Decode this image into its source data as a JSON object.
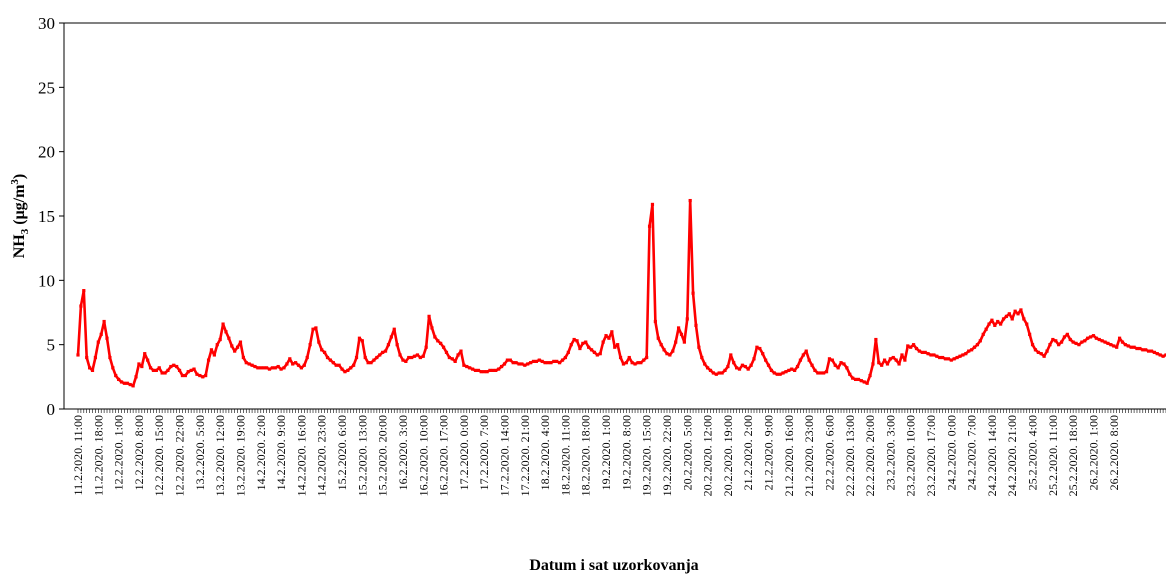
{
  "chart_data": {
    "type": "line",
    "title": "",
    "xlabel": "Datum i sat uzorkovanja",
    "ylabel": {
      "base": "NH",
      "sub": "3",
      "units_pre": " (μg/m",
      "sup": "3",
      "units_post": ")"
    },
    "ylim": [
      0,
      30
    ],
    "yticks": [
      0,
      5,
      10,
      15,
      20,
      25,
      30
    ],
    "grid": false,
    "legend": "none",
    "line_color": "#ff0000",
    "x_tick_labels": [
      "11.2.2020. 11:00",
      "11.2.2020. 18:00",
      "12.2.2020. 1:00",
      "12.2.2020. 8:00",
      "12.2.2020. 15:00",
      "12.2.2020. 22:00",
      "13.2.2020. 5:00",
      "13.2.2020. 12:00",
      "13.2.2020. 19:00",
      "14.2.2020. 2:00",
      "14.2.2020. 9:00",
      "14.2.2020. 16:00",
      "14.2.2020. 23:00",
      "15.2.2020. 6:00",
      "15.2.2020. 13:00",
      "15.2.2020. 20:00",
      "16.2.2020. 3:00",
      "16.2.2020. 10:00",
      "16.2.2020. 17:00",
      "17.2.2020. 0:00",
      "17.2.2020. 7:00",
      "17.2.2020. 14:00",
      "17.2.2020. 21:00",
      "18.2.2020. 4:00",
      "18.2.2020. 11:00",
      "18.2.2020. 18:00",
      "19.2.2020. 1:00",
      "19.2.2020. 8:00",
      "19.2.2020. 15:00",
      "19.2.2020. 22:00",
      "20.2.2020. 5:00",
      "20.2.2020. 12:00",
      "20.2.2020. 19:00",
      "21.2.2020. 2:00",
      "21.2.2020. 9:00",
      "21.2.2020. 16:00",
      "21.2.2020. 23:00",
      "22.2.2020. 6:00",
      "22.2.2020. 13:00",
      "22.2.2020. 20:00",
      "23.2.2020. 3:00",
      "23.2.2020. 10:00",
      "23.2.2020. 17:00",
      "24.2.2020. 0:00",
      "24.2.2020. 7:00",
      "24.2.2020. 14:00",
      "24.2.2020. 21:00",
      "25.2.2020. 4:00",
      "25.2.2020. 11:00",
      "25.2.2020. 18:00",
      "26.2.2020. 1:00",
      "26.2.2020. 8:00"
    ],
    "series": [
      {
        "x_start": "11.2.2020. 11:00",
        "x_step_hours": 1,
        "values": [
          4.2,
          8.0,
          9.2,
          4.0,
          3.2,
          3.0,
          4.0,
          5.2,
          5.8,
          6.8,
          5.5,
          4.0,
          3.2,
          2.6,
          2.3,
          2.1,
          2.0,
          2.0,
          1.9,
          1.8,
          2.5,
          3.5,
          3.3,
          4.3,
          3.8,
          3.2,
          3.0,
          3.0,
          3.2,
          2.8,
          2.8,
          3.0,
          3.3,
          3.4,
          3.3,
          3.0,
          2.6,
          2.6,
          2.9,
          3.0,
          3.1,
          2.7,
          2.6,
          2.5,
          2.6,
          3.8,
          4.6,
          4.2,
          5.0,
          5.4,
          6.6,
          6.0,
          5.5,
          4.9,
          4.5,
          4.8,
          5.2,
          4.0,
          3.6,
          3.5,
          3.4,
          3.3,
          3.2,
          3.2,
          3.2,
          3.2,
          3.1,
          3.2,
          3.2,
          3.3,
          3.1,
          3.2,
          3.5,
          3.9,
          3.5,
          3.6,
          3.4,
          3.2,
          3.4,
          4.0,
          5.0,
          6.2,
          6.3,
          5.2,
          4.6,
          4.4,
          4.0,
          3.8,
          3.6,
          3.4,
          3.4,
          3.1,
          2.9,
          3.0,
          3.2,
          3.4,
          4.0,
          5.5,
          5.3,
          4.0,
          3.6,
          3.6,
          3.8,
          4.0,
          4.2,
          4.4,
          4.5,
          5.0,
          5.6,
          6.2,
          5.0,
          4.2,
          3.8,
          3.7,
          4.0,
          4.0,
          4.1,
          4.2,
          4.0,
          4.1,
          4.8,
          7.2,
          6.3,
          5.6,
          5.3,
          5.1,
          4.8,
          4.4,
          4.0,
          3.9,
          3.7,
          4.2,
          4.5,
          3.4,
          3.3,
          3.2,
          3.1,
          3.0,
          3.0,
          2.9,
          2.9,
          2.9,
          3.0,
          3.0,
          3.0,
          3.1,
          3.3,
          3.5,
          3.8,
          3.8,
          3.6,
          3.6,
          3.5,
          3.5,
          3.4,
          3.5,
          3.6,
          3.7,
          3.7,
          3.8,
          3.7,
          3.6,
          3.6,
          3.6,
          3.7,
          3.7,
          3.6,
          3.8,
          4.0,
          4.4,
          5.0,
          5.4,
          5.3,
          4.7,
          5.1,
          5.2,
          4.8,
          4.6,
          4.4,
          4.2,
          4.3,
          5.2,
          5.7,
          5.5,
          6.0,
          4.8,
          5.0,
          4.0,
          3.5,
          3.6,
          4.0,
          3.6,
          3.5,
          3.6,
          3.6,
          3.8,
          4.0,
          14.2,
          15.9,
          6.8,
          5.5,
          5.0,
          4.6,
          4.3,
          4.2,
          4.5,
          5.2,
          6.3,
          5.8,
          5.2,
          7.0,
          16.2,
          9.0,
          6.5,
          4.8,
          4.0,
          3.5,
          3.2,
          3.0,
          2.8,
          2.7,
          2.8,
          2.8,
          3.0,
          3.3,
          4.2,
          3.6,
          3.2,
          3.1,
          3.4,
          3.3,
          3.1,
          3.4,
          3.9,
          4.8,
          4.7,
          4.3,
          3.8,
          3.4,
          3.0,
          2.8,
          2.7,
          2.7,
          2.8,
          2.9,
          3.0,
          3.1,
          3.0,
          3.3,
          3.8,
          4.2,
          4.5,
          3.8,
          3.4,
          3.0,
          2.8,
          2.8,
          2.8,
          2.9,
          3.9,
          3.8,
          3.4,
          3.2,
          3.6,
          3.5,
          3.2,
          2.7,
          2.4,
          2.3,
          2.3,
          2.2,
          2.1,
          2.0,
          2.6,
          3.5,
          5.4,
          3.6,
          3.4,
          3.8,
          3.5,
          3.9,
          4.0,
          3.8,
          3.5,
          4.2,
          3.8,
          4.9,
          4.8,
          5.0,
          4.7,
          4.5,
          4.4,
          4.4,
          4.3,
          4.2,
          4.2,
          4.1,
          4.0,
          4.0,
          3.9,
          3.9,
          3.8,
          3.9,
          4.0,
          4.1,
          4.2,
          4.3,
          4.5,
          4.6,
          4.8,
          5.0,
          5.3,
          5.8,
          6.2,
          6.6,
          6.9,
          6.5,
          6.8,
          6.6,
          7.0,
          7.2,
          7.4,
          7.0,
          7.6,
          7.4,
          7.7,
          7.0,
          6.6,
          5.8,
          5.0,
          4.6,
          4.4,
          4.3,
          4.1,
          4.5,
          5.0,
          5.4,
          5.3,
          5.0,
          5.2,
          5.6,
          5.8,
          5.4,
          5.2,
          5.1,
          5.0,
          5.2,
          5.3,
          5.5,
          5.6,
          5.7,
          5.5,
          5.4,
          5.3,
          5.2,
          5.1,
          5.0,
          4.9,
          4.8,
          5.5,
          5.2,
          5.0,
          4.9,
          4.8,
          4.8,
          4.7,
          4.7,
          4.6,
          4.6,
          4.5,
          4.5,
          4.4,
          4.3,
          4.2,
          4.1,
          4.2
        ]
      }
    ]
  }
}
